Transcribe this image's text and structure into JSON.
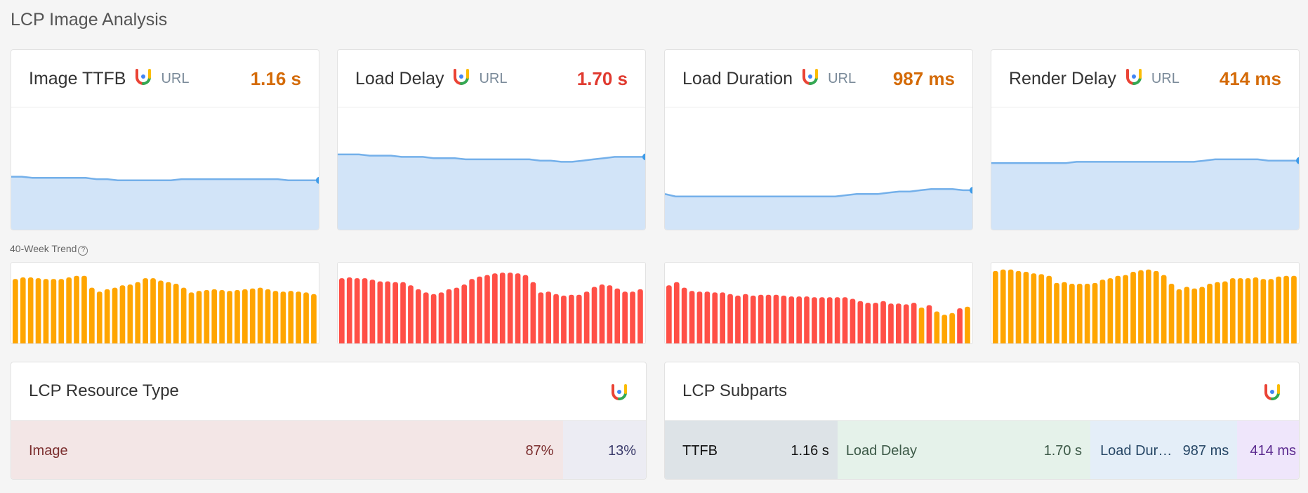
{
  "page": {
    "title": "LCP Image Analysis"
  },
  "colors": {
    "accent_orange": "#d46b08",
    "accent_red": "#e03a2f",
    "area_fill": "#d2e4f8",
    "area_line": "#74b0ea",
    "bar_orange": "#ffa500",
    "bar_red": "#ff4f46"
  },
  "metrics": [
    {
      "title": "Image TTFB",
      "url_label": "URL",
      "value": "1.16 s",
      "status": "orange",
      "trend": [
        0.44,
        0.44,
        0.43,
        0.43,
        0.43,
        0.43,
        0.43,
        0.43,
        0.42,
        0.42,
        0.41,
        0.41,
        0.41,
        0.41,
        0.41,
        0.41,
        0.42,
        0.42,
        0.42,
        0.42,
        0.42,
        0.42,
        0.42,
        0.42,
        0.42,
        0.42,
        0.41,
        0.41,
        0.41,
        0.41
      ],
      "bars": [
        0.83,
        0.85,
        0.85,
        0.84,
        0.83,
        0.83,
        0.83,
        0.85,
        0.87,
        0.87,
        0.72,
        0.67,
        0.7,
        0.72,
        0.75,
        0.76,
        0.79,
        0.84,
        0.84,
        0.81,
        0.79,
        0.77,
        0.72,
        0.66,
        0.68,
        0.69,
        0.7,
        0.69,
        0.68,
        0.69,
        0.7,
        0.71,
        0.72,
        0.7,
        0.68,
        0.67,
        0.68,
        0.67,
        0.66,
        0.64
      ]
    },
    {
      "title": "Load Delay",
      "url_label": "URL",
      "value": "1.70 s",
      "status": "red",
      "trend": [
        0.62,
        0.62,
        0.62,
        0.61,
        0.61,
        0.61,
        0.6,
        0.6,
        0.6,
        0.59,
        0.59,
        0.59,
        0.58,
        0.58,
        0.58,
        0.58,
        0.58,
        0.58,
        0.58,
        0.57,
        0.57,
        0.56,
        0.56,
        0.57,
        0.58,
        0.59,
        0.6,
        0.6,
        0.6,
        0.6
      ],
      "bars": [
        0.84,
        0.85,
        0.84,
        0.84,
        0.82,
        0.8,
        0.8,
        0.79,
        0.79,
        0.75,
        0.7,
        0.66,
        0.64,
        0.66,
        0.7,
        0.72,
        0.76,
        0.83,
        0.86,
        0.88,
        0.9,
        0.91,
        0.91,
        0.9,
        0.88,
        0.79,
        0.66,
        0.67,
        0.64,
        0.62,
        0.63,
        0.63,
        0.67,
        0.73,
        0.76,
        0.75,
        0.71,
        0.67,
        0.67,
        0.7
      ]
    },
    {
      "title": "Load Duration",
      "url_label": "URL",
      "value": "987 ms",
      "status": "orange",
      "trend": [
        0.3,
        0.28,
        0.28,
        0.28,
        0.28,
        0.28,
        0.28,
        0.28,
        0.28,
        0.28,
        0.28,
        0.28,
        0.28,
        0.28,
        0.28,
        0.28,
        0.28,
        0.29,
        0.3,
        0.3,
        0.3,
        0.31,
        0.32,
        0.32,
        0.33,
        0.34,
        0.34,
        0.34,
        0.33,
        0.33
      ],
      "bars": [
        0.75,
        0.79,
        0.72,
        0.68,
        0.67,
        0.67,
        0.66,
        0.66,
        0.64,
        0.62,
        0.64,
        0.62,
        0.63,
        0.63,
        0.63,
        0.62,
        0.61,
        0.61,
        0.61,
        0.6,
        0.6,
        0.6,
        0.6,
        0.6,
        0.58,
        0.55,
        0.53,
        0.53,
        0.55,
        0.52,
        0.52,
        0.51,
        0.53,
        0.47,
        0.5,
        0.42,
        0.38,
        0.4,
        0.46,
        0.48
      ],
      "bar_colors": [
        "red",
        "red",
        "red",
        "red",
        "red",
        "red",
        "red",
        "red",
        "red",
        "red",
        "red",
        "red",
        "red",
        "red",
        "red",
        "red",
        "red",
        "red",
        "red",
        "red",
        "red",
        "red",
        "red",
        "red",
        "red",
        "red",
        "red",
        "red",
        "red",
        "red",
        "red",
        "red",
        "red",
        "orange",
        "red",
        "orange",
        "orange",
        "orange",
        "red",
        "orange"
      ]
    },
    {
      "title": "Render Delay",
      "url_label": "URL",
      "value": "414 ms",
      "status": "orange",
      "trend": [
        0.55,
        0.55,
        0.55,
        0.55,
        0.55,
        0.55,
        0.55,
        0.55,
        0.56,
        0.56,
        0.56,
        0.56,
        0.56,
        0.56,
        0.56,
        0.56,
        0.56,
        0.56,
        0.56,
        0.56,
        0.57,
        0.58,
        0.58,
        0.58,
        0.58,
        0.58,
        0.57,
        0.57,
        0.57,
        0.57
      ],
      "bars": [
        0.93,
        0.95,
        0.95,
        0.93,
        0.92,
        0.9,
        0.89,
        0.87,
        0.78,
        0.79,
        0.77,
        0.77,
        0.77,
        0.78,
        0.82,
        0.84,
        0.87,
        0.88,
        0.92,
        0.94,
        0.95,
        0.93,
        0.88,
        0.77,
        0.7,
        0.73,
        0.71,
        0.73,
        0.77,
        0.79,
        0.8,
        0.84,
        0.84,
        0.84,
        0.85,
        0.83,
        0.83,
        0.86,
        0.87,
        0.87
      ]
    }
  ],
  "trend_label": {
    "text": "40-Week Trend",
    "help_icon": "?"
  },
  "resource_type": {
    "title": "LCP Resource Type",
    "segments": [
      {
        "label": "Image",
        "percent": "87%",
        "share": 0.87,
        "bg": "#f3e6e6",
        "color": "#7b2e2e"
      },
      {
        "label": "",
        "percent": "13%",
        "share": 0.13,
        "bg": "#ececf3",
        "color": "#3a3a6a"
      }
    ]
  },
  "subparts": {
    "title": "LCP Subparts",
    "segments": [
      {
        "label": "TTFB",
        "value": "1.16 s",
        "share": 0.2807,
        "bg": "#dde3e7",
        "color": "#111"
      },
      {
        "label": "Load Delay",
        "value": "1.70 s",
        "share": 0.4114,
        "bg": "#e5f2ea",
        "color": "#3d5a48"
      },
      {
        "label": "Load Dur…",
        "value": "987 ms",
        "share": 0.2389,
        "bg": "#e4eef8",
        "color": "#274766"
      },
      {
        "label": "",
        "value": "414 ms",
        "share": 0.1002,
        "bg": "#efe6fb",
        "color": "#5b2a8f"
      }
    ]
  }
}
